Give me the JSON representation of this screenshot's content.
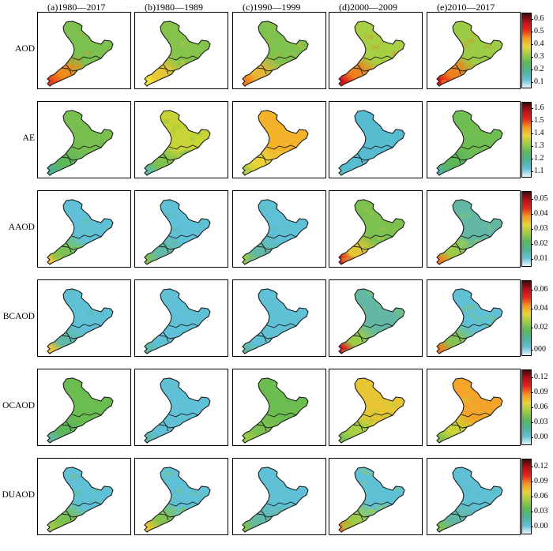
{
  "columns": [
    {
      "label": "(a)1980—2017"
    },
    {
      "label": "(b)1980—1989"
    },
    {
      "label": "(c)1990—1999"
    },
    {
      "label": "(d)2000—2009"
    },
    {
      "label": "(e)2010—2017"
    }
  ],
  "rows": [
    {
      "label": "AOD",
      "ticks": [
        "0.1",
        "0.2",
        "0.3",
        "0.4",
        "0.5",
        "0.6"
      ],
      "panels": [
        {
          "base": "#7cc04f",
          "south": "#f08a18",
          "tip": "#e8401c",
          "hint": 0.5
        },
        {
          "base": "#86c34d",
          "south": "#e8c533",
          "tip": "#f0e23c",
          "hint": 0.3
        },
        {
          "base": "#80c24e",
          "south": "#ecb534",
          "tip": "#f07d1e",
          "hint": 0.45
        },
        {
          "base": "#a6cf44",
          "south": "#f07d1e",
          "tip": "#d9141c",
          "hint": 0.7
        },
        {
          "base": "#9ccc45",
          "south": "#f07d1e",
          "tip": "#d9141c",
          "hint": 0.7
        }
      ]
    },
    {
      "label": "AE",
      "ticks": [
        "1.1",
        "1.2",
        "1.3",
        "1.4",
        "1.5",
        "1.6"
      ],
      "panels": [
        {
          "base": "#78bf4f",
          "south": "#5cb65a",
          "tip": "#4bb3a9",
          "hint": 0.2
        },
        {
          "base": "#c8d436",
          "south": "#7cc04f",
          "tip": "#5bb8a6",
          "hint": 0.2
        },
        {
          "base": "#f4b22b",
          "south": "#e8d43a",
          "tip": "#9ccc45",
          "hint": 0.2
        },
        {
          "base": "#58bcd0",
          "south": "#58bcd0",
          "tip": "#58bcd0",
          "hint": 0.0
        },
        {
          "base": "#70be52",
          "south": "#5cb65a",
          "tip": "#4fb4aa",
          "hint": 0.1
        }
      ]
    },
    {
      "label": "AAOD",
      "ticks": [
        "0.01",
        "0.02",
        "0.03",
        "0.04",
        "0.05"
      ],
      "panels": [
        {
          "base": "#5fc0d6",
          "south": "#7cc04f",
          "tip": "#f0c633",
          "hint": 0.4
        },
        {
          "base": "#5fc0d6",
          "south": "#62b8a4",
          "tip": "#86c34d",
          "hint": 0.3
        },
        {
          "base": "#5fc0d6",
          "south": "#62b8a4",
          "tip": "#9ccc45",
          "hint": 0.3
        },
        {
          "base": "#7cc04f",
          "south": "#e8c533",
          "tip": "#d9141c",
          "hint": 0.7
        },
        {
          "base": "#62b8a4",
          "south": "#9ccc45",
          "tip": "#f07d1e",
          "hint": 0.6
        }
      ]
    },
    {
      "label": "BCAOD",
      "ticks": [
        "000",
        "0.02",
        "0.04",
        "0.06"
      ],
      "panels": [
        {
          "base": "#5fc0d6",
          "south": "#62b8a4",
          "tip": "#f0c633",
          "hint": 0.4
        },
        {
          "base": "#5fc0d6",
          "south": "#5fc0d6",
          "tip": "#62b8a4",
          "hint": 0.2
        },
        {
          "base": "#5fc0d6",
          "south": "#5fc0d6",
          "tip": "#62b8a4",
          "hint": 0.2
        },
        {
          "base": "#62b8a4",
          "south": "#9ccc45",
          "tip": "#d9141c",
          "hint": 0.7
        },
        {
          "base": "#5fc0d6",
          "south": "#86c34d",
          "tip": "#f07d1e",
          "hint": 0.6
        }
      ]
    },
    {
      "label": "OCAOD",
      "ticks": [
        "0.00",
        "0.03",
        "0.06",
        "0.09",
        "0.12"
      ],
      "panels": [
        {
          "base": "#6cbd50",
          "south": "#5cb65a",
          "tip": "#62b8a4",
          "hint": 0.2
        },
        {
          "base": "#5fc0d6",
          "south": "#5fc0d6",
          "tip": "#62b8a4",
          "hint": 0.1
        },
        {
          "base": "#6cbd50",
          "south": "#7cc04f",
          "tip": "#9ccc45",
          "hint": 0.2
        },
        {
          "base": "#e8c533",
          "south": "#a6cf44",
          "tip": "#7cc04f",
          "hint": 0.4
        },
        {
          "base": "#f4a42a",
          "south": "#c8d436",
          "tip": "#86c34d",
          "hint": 0.5
        }
      ]
    },
    {
      "label": "DUAOD",
      "ticks": [
        "0.00",
        "0.03",
        "0.06",
        "0.09",
        "0.12"
      ],
      "panels": [
        {
          "base": "#5fc0d6",
          "south": "#7cc04f",
          "tip": "#9ccc45",
          "hint": 0.3
        },
        {
          "base": "#5fc0d6",
          "south": "#86c34d",
          "tip": "#e8c533",
          "hint": 0.4
        },
        {
          "base": "#5fc0d6",
          "south": "#62b8a4",
          "tip": "#7cc04f",
          "hint": 0.2
        },
        {
          "base": "#5fc0d6",
          "south": "#9ccc45",
          "tip": "#f07d1e",
          "hint": 0.5
        },
        {
          "base": "#5fc0d6",
          "south": "#62b8a4",
          "tip": "#7cc04f",
          "hint": 0.2
        }
      ]
    }
  ],
  "colorbar": [
    "#e8f6fa",
    "#5fc0d6",
    "#4fb496",
    "#5cb85a",
    "#9ccc45",
    "#e8d43a",
    "#f49a24",
    "#e8281c",
    "#b8101a",
    "#3a0a08"
  ]
}
